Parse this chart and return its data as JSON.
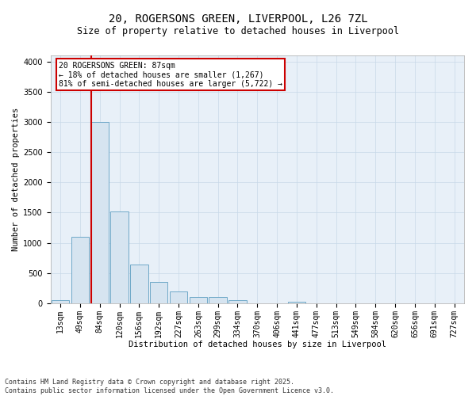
{
  "title_line1": "20, ROGERSONS GREEN, LIVERPOOL, L26 7ZL",
  "title_line2": "Size of property relative to detached houses in Liverpool",
  "xlabel": "Distribution of detached houses by size in Liverpool",
  "ylabel": "Number of detached properties",
  "categories": [
    "13sqm",
    "49sqm",
    "84sqm",
    "120sqm",
    "156sqm",
    "192sqm",
    "227sqm",
    "263sqm",
    "299sqm",
    "334sqm",
    "370sqm",
    "406sqm",
    "441sqm",
    "477sqm",
    "513sqm",
    "549sqm",
    "584sqm",
    "620sqm",
    "656sqm",
    "691sqm",
    "727sqm"
  ],
  "values": [
    50,
    1100,
    3000,
    1520,
    640,
    350,
    200,
    100,
    100,
    50,
    0,
    0,
    25,
    0,
    0,
    0,
    0,
    0,
    0,
    0,
    0
  ],
  "bar_color": "#d6e4f0",
  "bar_edge_color": "#6fa8c8",
  "vline_color": "#cc0000",
  "vline_xindex": 2,
  "annotation_text": "20 ROGERSONS GREEN: 87sqm\n← 18% of detached houses are smaller (1,267)\n81% of semi-detached houses are larger (5,722) →",
  "annotation_box_color": "#cc0000",
  "ylim": [
    0,
    4100
  ],
  "yticks": [
    0,
    500,
    1000,
    1500,
    2000,
    2500,
    3000,
    3500,
    4000
  ],
  "grid_color": "#c8d8e8",
  "background_color": "#e8f0f8",
  "footnote": "Contains HM Land Registry data © Crown copyright and database right 2025.\nContains public sector information licensed under the Open Government Licence v3.0.",
  "title_fontsize": 10,
  "subtitle_fontsize": 8.5,
  "axis_label_fontsize": 7.5,
  "tick_fontsize": 7,
  "annotation_fontsize": 7,
  "footnote_fontsize": 6
}
